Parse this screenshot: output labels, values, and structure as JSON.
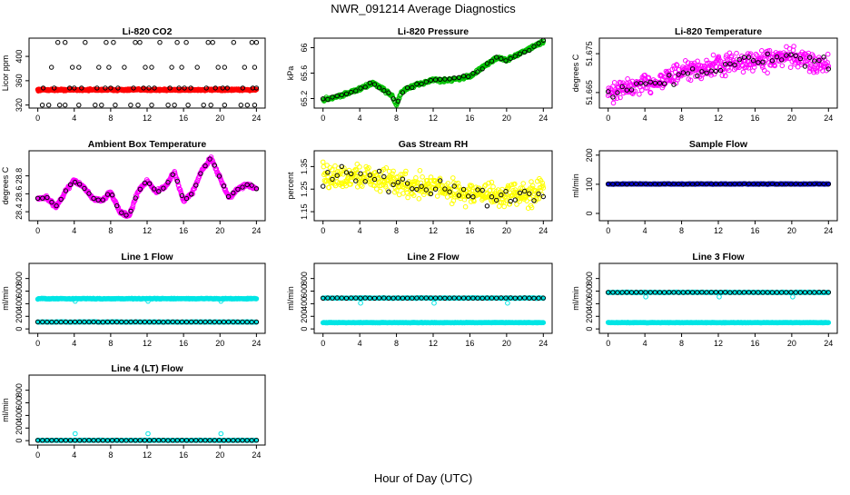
{
  "page": {
    "title": "NWR_091214  Average Diagnostics",
    "xlabel": "Hour of Day (UTC)"
  },
  "colors": {
    "black": "#000000",
    "red": "#ff0000",
    "green": "#00c000",
    "magenta": "#ff00ff",
    "yellow": "#ffff00",
    "cyan": "#00e5e5",
    "blue": "#0000cc"
  },
  "chart_data": [
    {
      "id": "co2",
      "type": "scatter",
      "title": "Li-820 CO2",
      "ylabel": "Licor ppm",
      "xlim": [
        0,
        24
      ],
      "ylim": [
        315,
        430
      ],
      "yticks": [
        320,
        360,
        400
      ],
      "xticks": [
        0,
        4,
        8,
        12,
        16,
        20,
        24
      ],
      "series": [
        {
          "name": "dense",
          "color": "#ff0000",
          "pattern": "flat",
          "value": 345,
          "noise": 1.2,
          "n": 430,
          "filled": true
        },
        {
          "name": "cal_low",
          "color": "#000000",
          "pattern": "points",
          "x": [
            0.5,
            1.2,
            2.4,
            3.0,
            4.5,
            6.3,
            7.0,
            8.5,
            10.2,
            11.0,
            12.5,
            14.3,
            15.0,
            16.5,
            18.2,
            19.0,
            20.5,
            22.3,
            23.0,
            23.8
          ],
          "y": [
            320,
            320,
            320,
            320,
            320,
            320,
            320,
            320,
            320,
            320,
            320,
            320,
            320,
            320,
            320,
            320,
            320,
            320,
            320,
            320
          ]
        },
        {
          "name": "cal_mid",
          "color": "#000000",
          "pattern": "points",
          "x": [
            0.6,
            1.8,
            3.5,
            4.0,
            4.8,
            6.5,
            7.4,
            8.0,
            8.8,
            10.5,
            11.6,
            12.2,
            12.8,
            14.5,
            15.5,
            16.1,
            16.8,
            18.5,
            19.5,
            20.3,
            20.8,
            22.5,
            23.6,
            24.0
          ],
          "y": [
            348,
            348,
            348,
            348,
            348,
            348,
            348,
            348,
            348,
            348,
            348,
            348,
            348,
            348,
            348,
            348,
            348,
            348,
            348,
            348,
            348,
            348,
            348,
            348
          ]
        },
        {
          "name": "cal_span1",
          "color": "#000000",
          "pattern": "points",
          "x": [
            1.5,
            3.8,
            4.5,
            6.7,
            7.8,
            9.5,
            11.8,
            12.5,
            14.7,
            15.8,
            17.5,
            19.8,
            20.5,
            22.7,
            23.8
          ],
          "y": [
            382,
            382,
            382,
            382,
            382,
            382,
            382,
            382,
            382,
            382,
            382,
            382,
            382,
            382,
            382
          ]
        },
        {
          "name": "cal_span2",
          "color": "#000000",
          "pattern": "points",
          "x": [
            2.2,
            3.0,
            5.2,
            7.5,
            8.3,
            10.7,
            11.2,
            13.4,
            15.3,
            16.3,
            18.7,
            19.2,
            21.5,
            23.5,
            24.0
          ],
          "y": [
            423,
            423,
            423,
            423,
            423,
            423,
            423,
            423,
            423,
            423,
            423,
            423,
            423,
            423,
            423
          ]
        }
      ]
    },
    {
      "id": "pressure",
      "type": "scatter",
      "title": "Li-820 Pressure",
      "ylabel": "kPa",
      "xlim": [
        0,
        24
      ],
      "ylim": [
        65.05,
        66.15
      ],
      "yticks": [
        65.2,
        65.6,
        66.0
      ],
      "xticks": [
        0,
        4,
        8,
        12,
        16,
        20,
        24
      ],
      "series": [
        {
          "name": "dense",
          "color": "#00c000",
          "pattern": "curve",
          "n": 400,
          "noise": 0.02,
          "knots_x": [
            0,
            2,
            4,
            5.5,
            6,
            7,
            7.5,
            8,
            8.5,
            9,
            10,
            11,
            12,
            13,
            14,
            15,
            16,
            17,
            18,
            19,
            20,
            21,
            22,
            23,
            24
          ],
          "knots_y": [
            65.18,
            65.25,
            65.35,
            65.45,
            65.4,
            65.3,
            65.25,
            65.1,
            65.28,
            65.35,
            65.4,
            65.45,
            65.5,
            65.48,
            65.5,
            65.52,
            65.55,
            65.65,
            65.75,
            65.85,
            65.8,
            65.88,
            65.95,
            66.02,
            66.1
          ]
        },
        {
          "name": "hourly",
          "color": "#000000",
          "pattern": "curve",
          "n": 48,
          "noise": 0.025,
          "knots_x": [
            0,
            2,
            4,
            5.5,
            6,
            7,
            7.5,
            8,
            8.5,
            9,
            10,
            11,
            12,
            13,
            14,
            15,
            16,
            17,
            18,
            19,
            20,
            21,
            22,
            23,
            24
          ],
          "knots_y": [
            65.18,
            65.25,
            65.35,
            65.45,
            65.4,
            65.3,
            65.25,
            65.1,
            65.28,
            65.35,
            65.4,
            65.45,
            65.5,
            65.48,
            65.5,
            65.52,
            65.55,
            65.65,
            65.75,
            65.85,
            65.8,
            65.88,
            65.95,
            66.02,
            66.1
          ]
        }
      ]
    },
    {
      "id": "licor_temp",
      "type": "scatter",
      "title": "Li-820 Temperature",
      "ylabel": "degrees C",
      "xlim": [
        0,
        24
      ],
      "ylim": [
        51.661,
        51.679
      ],
      "yticks": [
        51.665,
        51.675
      ],
      "xticks": [
        0,
        4,
        8,
        12,
        16,
        20,
        24
      ],
      "series": [
        {
          "name": "dense",
          "color": "#ff00ff",
          "pattern": "curve",
          "n": 420,
          "noise": 0.0022,
          "knots_x": [
            0,
            4,
            8,
            12,
            16,
            20,
            24
          ],
          "knots_y": [
            51.665,
            51.667,
            51.67,
            51.672,
            51.673,
            51.674,
            51.672
          ]
        },
        {
          "name": "hourly",
          "color": "#000000",
          "pattern": "curve",
          "n": 48,
          "noise": 0.0018,
          "knots_x": [
            0,
            4,
            8,
            12,
            16,
            20,
            24
          ],
          "knots_y": [
            51.665,
            51.667,
            51.67,
            51.672,
            51.673,
            51.674,
            51.672
          ]
        }
      ]
    },
    {
      "id": "box_temp",
      "type": "scatter",
      "title": "Ambient Box Temperature",
      "ylabel": "degrees C",
      "xlim": [
        0,
        24
      ],
      "ylim": [
        28.3,
        29.08
      ],
      "yticks": [
        28.4,
        28.6,
        28.8
      ],
      "xticks": [
        0,
        4,
        8,
        12,
        16,
        20,
        24
      ],
      "series": [
        {
          "name": "dense",
          "color": "#ff00ff",
          "pattern": "curve",
          "n": 460,
          "noise": 0.015,
          "knots_x": [
            0,
            1,
            2,
            3,
            4,
            5,
            6,
            7,
            8,
            9,
            10,
            11,
            12,
            13,
            14,
            15,
            16,
            17,
            18,
            19,
            20,
            21,
            22,
            23,
            24
          ],
          "knots_y": [
            28.55,
            28.56,
            28.45,
            28.62,
            28.75,
            28.68,
            28.55,
            28.52,
            28.62,
            28.4,
            28.35,
            28.62,
            28.75,
            28.62,
            28.68,
            28.84,
            28.52,
            28.62,
            28.86,
            29.0,
            28.78,
            28.55,
            28.66,
            28.7,
            28.66
          ]
        },
        {
          "name": "hourly",
          "color": "#000000",
          "pattern": "curve",
          "n": 48,
          "noise": 0.01,
          "knots_x": [
            0,
            1,
            2,
            3,
            4,
            5,
            6,
            7,
            8,
            9,
            10,
            11,
            12,
            13,
            14,
            15,
            16,
            17,
            18,
            19,
            20,
            21,
            22,
            23,
            24
          ],
          "knots_y": [
            28.55,
            28.56,
            28.45,
            28.62,
            28.75,
            28.68,
            28.55,
            28.52,
            28.62,
            28.4,
            28.35,
            28.62,
            28.75,
            28.62,
            28.68,
            28.84,
            28.52,
            28.62,
            28.86,
            29.0,
            28.78,
            28.55,
            28.66,
            28.7,
            28.66
          ]
        }
      ]
    },
    {
      "id": "rh",
      "type": "scatter",
      "title": "Gas Stream RH",
      "ylabel": "percent",
      "xlim": [
        0,
        24
      ],
      "ylim": [
        1.11,
        1.42
      ],
      "yticks": [
        1.15,
        1.25,
        1.35
      ],
      "xticks": [
        0,
        4,
        8,
        12,
        16,
        20,
        24
      ],
      "series": [
        {
          "name": "dense",
          "color": "#ffff00",
          "pattern": "curve",
          "n": 440,
          "noise": 0.045,
          "knots_x": [
            0,
            4,
            8,
            12,
            16,
            20,
            24
          ],
          "knots_y": [
            1.3,
            1.31,
            1.28,
            1.26,
            1.23,
            1.22,
            1.24
          ]
        },
        {
          "name": "hourly",
          "color": "#000000",
          "pattern": "curve",
          "n": 48,
          "noise": 0.035,
          "knots_x": [
            0,
            4,
            8,
            12,
            16,
            20,
            24
          ],
          "knots_y": [
            1.3,
            1.31,
            1.28,
            1.26,
            1.23,
            1.22,
            1.24
          ]
        }
      ]
    },
    {
      "id": "sample_flow",
      "type": "scatter",
      "title": "Sample Flow",
      "ylabel": "ml/min",
      "xlim": [
        0,
        24
      ],
      "ylim": [
        -25,
        215
      ],
      "yticks": [
        0,
        100,
        200
      ],
      "xticks": [
        0,
        4,
        8,
        12,
        16,
        20,
        24
      ],
      "series": [
        {
          "name": "dense",
          "color": "#0000cc",
          "pattern": "flat",
          "value": 101,
          "noise": 0.8,
          "n": 300,
          "filled": true
        },
        {
          "name": "hourly",
          "color": "#000000",
          "pattern": "flat",
          "value": 101,
          "noise": 0.8,
          "n": 48
        }
      ]
    },
    {
      "id": "line1",
      "type": "scatter",
      "title": "Line 1 Flow",
      "ylabel": "ml/min",
      "xlim": [
        0,
        24
      ],
      "ylim": [
        -70,
        1040
      ],
      "yticks": [
        0,
        200,
        400,
        600,
        800
      ],
      "xticks": [
        0,
        4,
        8,
        12,
        16,
        20,
        24
      ],
      "series": [
        {
          "name": "flow_high",
          "color": "#00e5e5",
          "pattern": "flat",
          "value": 480,
          "noise": 5,
          "n": 320,
          "filled": true
        },
        {
          "name": "dips",
          "color": "#00e5e5",
          "pattern": "points",
          "x": [
            4.1,
            12.1,
            20.1
          ],
          "y": [
            440,
            440,
            440
          ]
        },
        {
          "name": "flow_low",
          "color": "#00e5e5",
          "pattern": "flat",
          "value": 110,
          "noise": 3,
          "n": 260,
          "filled": true
        },
        {
          "name": "hourly",
          "color": "#000000",
          "pattern": "flat",
          "value": 110,
          "noise": 2,
          "n": 48
        }
      ]
    },
    {
      "id": "line2",
      "type": "scatter",
      "title": "Line 2 Flow",
      "ylabel": "ml/min",
      "xlim": [
        0,
        24
      ],
      "ylim": [
        -70,
        1040
      ],
      "yticks": [
        0,
        200,
        400,
        600,
        800
      ],
      "xticks": [
        0,
        4,
        8,
        12,
        16,
        20,
        24
      ],
      "series": [
        {
          "name": "flow_high",
          "color": "#00e5e5",
          "pattern": "flat",
          "value": 490,
          "noise": 4,
          "n": 260,
          "filled": true
        },
        {
          "name": "dips",
          "color": "#00e5e5",
          "pattern": "points",
          "x": [
            4.1,
            12.1,
            20.1
          ],
          "y": [
            410,
            410,
            410
          ]
        },
        {
          "name": "flow_low",
          "color": "#00e5e5",
          "pattern": "flat",
          "value": 100,
          "noise": 3,
          "n": 320,
          "filled": true
        },
        {
          "name": "hourly",
          "color": "#000000",
          "pattern": "flat",
          "value": 490,
          "noise": 2,
          "n": 48
        }
      ]
    },
    {
      "id": "line3",
      "type": "scatter",
      "title": "Line 3 Flow",
      "ylabel": "ml/min",
      "xlim": [
        0,
        24
      ],
      "ylim": [
        -70,
        1040
      ],
      "yticks": [
        0,
        200,
        400,
        600,
        800
      ],
      "xticks": [
        0,
        4,
        8,
        12,
        16,
        20,
        24
      ],
      "series": [
        {
          "name": "flow_high",
          "color": "#00e5e5",
          "pattern": "flat",
          "value": 580,
          "noise": 4,
          "n": 240,
          "filled": true
        },
        {
          "name": "dips",
          "color": "#00e5e5",
          "pattern": "points",
          "x": [
            4.1,
            12.1,
            20.1
          ],
          "y": [
            510,
            510,
            510
          ]
        },
        {
          "name": "flow_low",
          "color": "#00e5e5",
          "pattern": "flat",
          "value": 100,
          "noise": 3,
          "n": 320,
          "filled": true
        },
        {
          "name": "hourly",
          "color": "#000000",
          "pattern": "flat",
          "value": 580,
          "noise": 2,
          "n": 48
        }
      ]
    },
    {
      "id": "line4",
      "type": "scatter",
      "title": "Line 4 (LT) Flow",
      "ylabel": "ml/min",
      "xlim": [
        0,
        24
      ],
      "ylim": [
        -70,
        1040
      ],
      "yticks": [
        0,
        200,
        400,
        600,
        800
      ],
      "xticks": [
        0,
        4,
        8,
        12,
        16,
        20,
        24
      ],
      "series": [
        {
          "name": "flow",
          "color": "#00e5e5",
          "pattern": "flat",
          "value": 5,
          "noise": 2,
          "n": 240,
          "filled": true
        },
        {
          "name": "spikes",
          "color": "#00e5e5",
          "pattern": "points",
          "x": [
            0.1,
            4.1,
            12.1,
            20.1
          ],
          "y": [
            5,
            110,
            110,
            110
          ]
        },
        {
          "name": "hourly",
          "color": "#000000",
          "pattern": "flat",
          "value": 5,
          "noise": 1,
          "n": 48
        }
      ]
    }
  ]
}
